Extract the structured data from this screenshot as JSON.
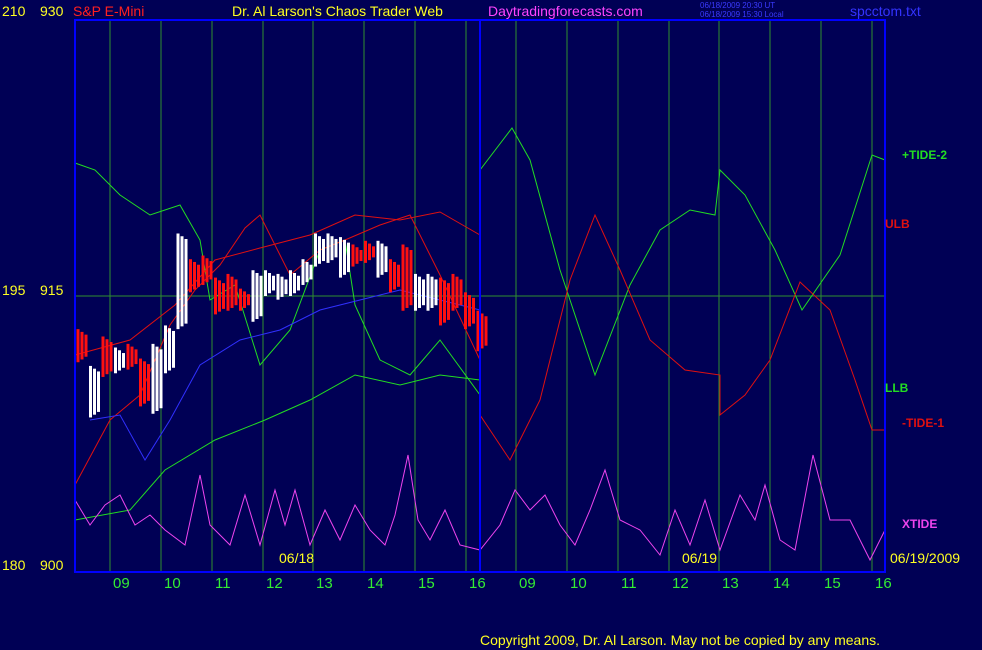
{
  "header": {
    "symbol": "S&P E-Mini",
    "title": "Dr. Al Larson's Chaos Trader Web",
    "site": "Daytradingforecasts.com",
    "timestamp_ut": "06/18/2009 20:30 UT",
    "timestamp_local": "06/18/2009 15:30 Local",
    "file": "spcctom.txt"
  },
  "footer": {
    "copyright": "Copyright 2009, Dr. Al Larson. May not be copied by any means."
  },
  "colors": {
    "background": "#000055",
    "frame": "#0000ff",
    "grid": "#2f8f2f",
    "bull_bar": "#ffffff",
    "bear_bar": "#ff1010",
    "green_line": "#22dd22",
    "red_line": "#e01010",
    "xtide": "#ee44ee",
    "avg_line": "#3030ff",
    "date_label": "#ffff22"
  },
  "chart_data": {
    "type": "line",
    "yaxis_left": [
      {
        "cycle": "210",
        "price": "930"
      },
      {
        "cycle": "195",
        "price": "915"
      },
      {
        "cycle": "180",
        "price": "900"
      }
    ],
    "ylim": [
      900,
      930
    ],
    "x_ticks": [
      "09",
      "10",
      "11",
      "12",
      "13",
      "14",
      "15",
      "16",
      "09",
      "10",
      "11",
      "12",
      "13",
      "14",
      "15",
      "16"
    ],
    "date_labels": [
      "06/18",
      "06/19",
      "06/19/2009"
    ],
    "series": [
      {
        "name": "+TIDE-2",
        "color": "#22dd22"
      },
      {
        "name": "ULB",
        "color": "#e01010"
      },
      {
        "name": "LLB",
        "color": "#22dd22"
      },
      {
        "name": "-TIDE-1",
        "color": "#e01010"
      },
      {
        "name": "XTIDE",
        "color": "#ee44ee"
      }
    ],
    "price_bars": [
      [
        912.6,
        912.0,
        0
      ],
      [
        909.0,
        910.6,
        1
      ],
      [
        912.2,
        911.2,
        0
      ],
      [
        911.4,
        911.6,
        1
      ],
      [
        911.8,
        911.6,
        0
      ],
      [
        911.0,
        909.6,
        0
      ],
      [
        909.2,
        911.8,
        1
      ],
      [
        911.4,
        912.8,
        1
      ],
      [
        913.8,
        917.8,
        1
      ],
      [
        916.4,
        915.8,
        0
      ],
      [
        916.6,
        916.2,
        0
      ],
      [
        915.4,
        914.6,
        0
      ],
      [
        915.6,
        914.8,
        0
      ],
      [
        914.8,
        914.8,
        0
      ],
      [
        914.2,
        915.8,
        1
      ],
      [
        915.6,
        915.8,
        1
      ],
      [
        915.4,
        915.6,
        1
      ],
      [
        915.6,
        915.8,
        1
      ],
      [
        916.2,
        916.4,
        1
      ],
      [
        917.2,
        917.8,
        1
      ],
      [
        917.4,
        917.8,
        1
      ],
      [
        916.6,
        917.6,
        1
      ],
      [
        917.2,
        917.2,
        0
      ],
      [
        917.4,
        917.4,
        0
      ],
      [
        916.6,
        917.4,
        1
      ],
      [
        916.4,
        915.8,
        0
      ],
      [
        917.2,
        914.8,
        0
      ],
      [
        914.8,
        915.6,
        1
      ],
      [
        914.8,
        915.6,
        1
      ],
      [
        915.4,
        914.0,
        0
      ],
      [
        915.6,
        914.8,
        0
      ],
      [
        914.6,
        913.8,
        0
      ],
      [
        913.6,
        912.6,
        0
      ]
    ],
    "plot_region": {
      "left_label": "x from 09:00 06/18 to 16:00 06/19",
      "right_label": "forecast region"
    }
  }
}
